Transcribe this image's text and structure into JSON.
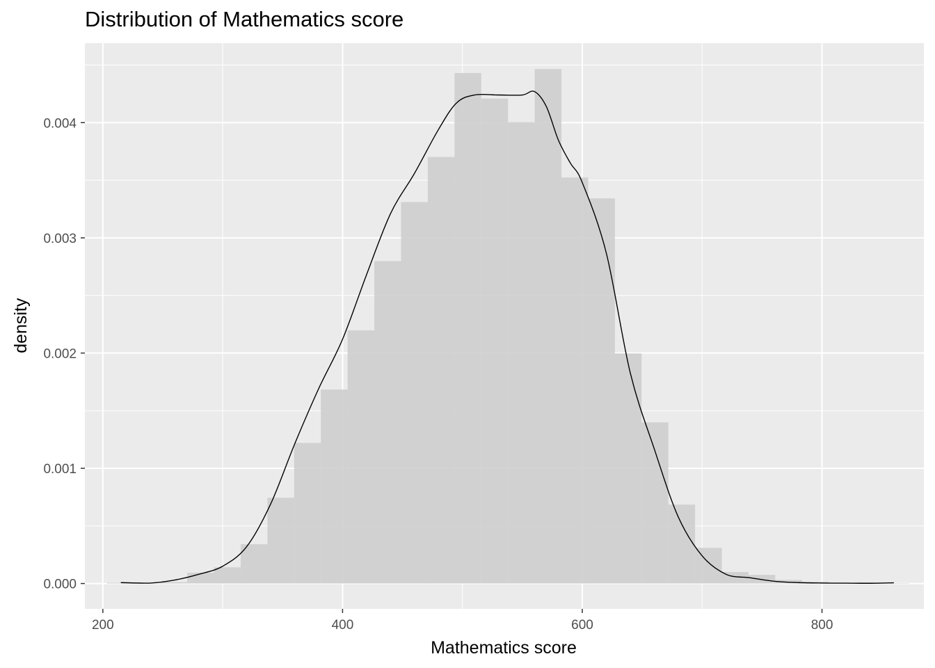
{
  "chart_data": {
    "type": "histogram",
    "title": "Distribution of Mathematics score",
    "xlabel": "Mathematics score",
    "ylabel": "density",
    "xlim": [
      185,
      885
    ],
    "ylim": [
      -0.00022,
      0.00469
    ],
    "x_ticks": [
      200,
      400,
      600,
      800
    ],
    "x_tick_labels": [
      "200",
      "400",
      "600",
      "800"
    ],
    "y_ticks": [
      0,
      0.001,
      0.002,
      0.003,
      0.004
    ],
    "y_tick_labels": [
      "0.000",
      "0.001",
      "0.002",
      "0.003",
      "0.004"
    ],
    "grid": true,
    "legend": "none",
    "histogram": {
      "bin_width": 22.3,
      "bin_starts": [
        203.5,
        225.8,
        248.1,
        270.4,
        292.7,
        315.0,
        337.3,
        359.6,
        381.9,
        404.2,
        426.5,
        448.8,
        471.1,
        493.4,
        515.7,
        538.0,
        560.3,
        582.6,
        604.9,
        627.2,
        649.5,
        671.8,
        694.1,
        716.4,
        738.7,
        761.0,
        783.3,
        805.6,
        827.9,
        850.2
      ],
      "density": [
        6.2e-06,
        3.1e-06,
        1.25e-05,
        9.37e-05,
        0.0001407,
        0.0003409,
        0.0007443,
        0.0012202,
        0.0016836,
        0.0021973,
        0.002798,
        0.003311,
        0.0037019,
        0.0044308,
        0.0042086,
        0.0040053,
        0.0044651,
        0.0035237,
        0.0033423,
        0.0019971,
        0.0013986,
        0.0006849,
        0.0003096,
        0.0001001,
        7.49e-05,
        3.12e-05,
        1.57e-05,
        6.2e-06,
        9.4e-06,
        3.1e-06
      ]
    },
    "density_curve": {
      "x": [
        215,
        240,
        260,
        280,
        300,
        320,
        340,
        360,
        380,
        400,
        420,
        440,
        460,
        480,
        495,
        510,
        530,
        550,
        560,
        570,
        580,
        590,
        600,
        620,
        640,
        660,
        680,
        700,
        720,
        740,
        760,
        780,
        800,
        820,
        840,
        860
      ],
      "y": [
        8e-06,
        4e-06,
        3e-05,
        8e-05,
        0.00015,
        0.00032,
        0.00069,
        0.00121,
        0.00169,
        0.00212,
        0.00268,
        0.00321,
        0.00356,
        0.00394,
        0.00417,
        0.00424,
        0.00424,
        0.00424,
        0.00427,
        0.00414,
        0.00385,
        0.00365,
        0.00348,
        0.00287,
        0.00183,
        0.00117,
        0.00058,
        0.00024,
        8e-05,
        5e-05,
        2e-05,
        8e-06,
        4e-06,
        3e-06,
        2e-06,
        6e-06
      ]
    },
    "colors": {
      "panel_background": "#ebebeb",
      "grid_major": "#ffffff",
      "bar_fill": "#cdcdcd",
      "curve": "#000000"
    }
  }
}
